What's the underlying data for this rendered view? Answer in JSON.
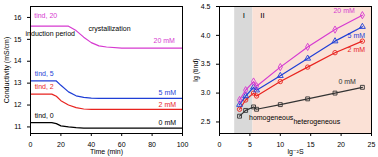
{
  "chart_data": [
    {
      "type": "line",
      "x_label": "Time (min)",
      "y_label": "Conductivity (mS/cm)",
      "x": [
        0,
        10,
        14,
        17,
        20,
        25,
        30,
        35,
        40,
        45,
        50,
        60,
        70,
        80,
        90,
        100
      ],
      "xlim": [
        0,
        100
      ],
      "xticks": [
        0,
        20,
        40,
        60,
        80,
        100
      ],
      "ylim": [
        10.7,
        16.5
      ],
      "yticks": [
        11,
        12,
        13,
        14,
        15,
        16
      ],
      "series": [
        {
          "name": "0 mM",
          "color": "#000000",
          "values": [
            11.2,
            11.2,
            11.2,
            11.15,
            11.05,
            11.0,
            10.97,
            10.95,
            10.95,
            10.95,
            10.95,
            10.95,
            10.95,
            10.95,
            10.95,
            10.95
          ]
        },
        {
          "name": "2 mM",
          "color": "#e8231f",
          "values": [
            12.5,
            12.5,
            12.5,
            12.4,
            12.2,
            12.0,
            11.88,
            11.82,
            11.8,
            11.8,
            11.8,
            11.8,
            11.8,
            11.8,
            11.8,
            11.8
          ]
        },
        {
          "name": "5 mM",
          "color": "#1f3fd6",
          "values": [
            13.1,
            13.1,
            13.1,
            13.1,
            12.9,
            12.6,
            12.42,
            12.35,
            12.32,
            12.3,
            12.3,
            12.3,
            12.3,
            12.3,
            12.3,
            12.3
          ]
        },
        {
          "name": "20 mM",
          "color": "#d63ad0",
          "values": [
            15.6,
            15.6,
            15.6,
            15.6,
            15.6,
            15.6,
            15.4,
            15.1,
            14.85,
            14.7,
            14.65,
            14.6,
            14.6,
            14.6,
            14.6,
            14.6
          ]
        }
      ],
      "annotations": [
        {
          "text": "tind, 20",
          "x": 10,
          "y": 16.1,
          "color": "#d63ad0"
        },
        {
          "text": "induction period",
          "x": 13,
          "y": 15.25,
          "color": "#000000"
        },
        {
          "text": "crystallization",
          "x": 52,
          "y": 15.5,
          "color": "#000000"
        },
        {
          "text": "tind, 5",
          "x": 9,
          "y": 13.45,
          "color": "#1f3fd6"
        },
        {
          "text": "tind, 2",
          "x": 9,
          "y": 12.85,
          "color": "#e8231f"
        },
        {
          "text": "tind, 0",
          "x": 9,
          "y": 11.5,
          "color": "#000000"
        },
        {
          "text": "20 mM",
          "x": 88,
          "y": 14.95,
          "color": "#d63ad0"
        },
        {
          "text": "5 mM",
          "x": 90,
          "y": 12.58,
          "color": "#1f3fd6"
        },
        {
          "text": "2 mM",
          "x": 90,
          "y": 12.03,
          "color": "#e8231f"
        },
        {
          "text": "0 mM",
          "x": 90,
          "y": 11.2,
          "color": "#000000"
        }
      ]
    },
    {
      "type": "line",
      "x_label": "lg⁻²S",
      "y_label": "lg (tind)",
      "x": [
        3.3,
        4.3,
        5.6,
        6.1,
        10,
        14.5,
        19,
        23.5
      ],
      "xlim": [
        0,
        25
      ],
      "xticks": [
        0,
        5,
        10,
        15,
        20,
        25
      ],
      "ylim": [
        2.3,
        4.5
      ],
      "yticks": [
        2.5,
        {
          "value": 3,
          "label": "3.0"
        },
        3.5,
        {
          "value": 4,
          "label": "4.0"
        },
        4.5
      ],
      "regions": [
        {
          "name": "I",
          "x": [
            2.5,
            5.5
          ],
          "color": "#d9d9d9"
        },
        {
          "name": "II",
          "x": [
            5.5,
            25
          ],
          "color": "#fbe1d6"
        }
      ],
      "series": [
        {
          "name": "0 mM",
          "color": "#333333",
          "marker": "square",
          "values": [
            2.6,
            2.7,
            2.76,
            2.72,
            2.8,
            2.9,
            3.0,
            3.1
          ]
        },
        {
          "name": "2 mM",
          "color": "#e8231f",
          "marker": "circle",
          "values": [
            2.72,
            2.88,
            3.0,
            2.95,
            3.2,
            3.45,
            3.7,
            3.9
          ]
        },
        {
          "name": "5 mM",
          "color": "#1f3fd6",
          "marker": "triangle",
          "values": [
            2.8,
            2.95,
            3.1,
            3.05,
            3.3,
            3.6,
            3.9,
            4.15
          ]
        },
        {
          "name": "20 mM",
          "color": "#d63ad0",
          "marker": "diamond",
          "values": [
            2.88,
            3.05,
            3.2,
            3.12,
            3.45,
            3.8,
            4.1,
            4.35
          ]
        }
      ],
      "annotations": [
        {
          "text": "20 mM",
          "x": 20.5,
          "y": 4.43,
          "color": "#d63ad0"
        },
        {
          "text": "5 mM",
          "x": 22.5,
          "y": 4.0,
          "color": "#1f3fd6"
        },
        {
          "text": "2 mM",
          "x": 22.5,
          "y": 3.75,
          "color": "#e8231f"
        },
        {
          "text": "0 mM",
          "x": 21,
          "y": 3.2,
          "color": "#333333"
        },
        {
          "text": "homogeneous",
          "x": 8.5,
          "y": 2.58,
          "color": "#000000"
        },
        {
          "text": "heterogeneous",
          "x": 16,
          "y": 2.5,
          "color": "#000000"
        }
      ]
    }
  ]
}
